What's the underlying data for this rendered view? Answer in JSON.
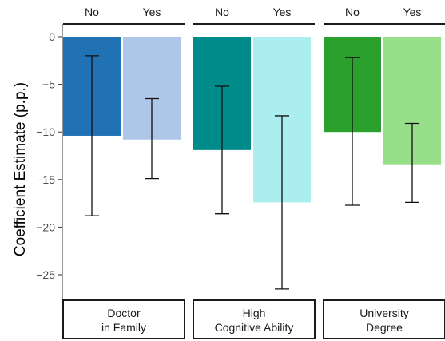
{
  "chart_data": {
    "type": "bar",
    "ylabel": "Coefficient Estimate (p.p.)",
    "xlabel": "",
    "ylim": [
      -27.3,
      0.2
    ],
    "y_ticks": [
      0,
      -5,
      -10,
      -15,
      -20,
      -25
    ],
    "y_tick_labels": [
      "0",
      "−5",
      "−10",
      "−15",
      "−20",
      "−25"
    ],
    "grid": false,
    "categories": [
      "No",
      "Yes"
    ],
    "panels": [
      {
        "title_lines": [
          "Doctor",
          "in Family"
        ],
        "bars": [
          {
            "category": "No",
            "value": -10.4,
            "ci_low": -18.8,
            "ci_high": -2.0,
            "color": "#2171b5"
          },
          {
            "category": "Yes",
            "value": -10.8,
            "ci_low": -14.9,
            "ci_high": -6.5,
            "color": "#aec7e8"
          }
        ]
      },
      {
        "title_lines": [
          "High",
          "Cognitive Ability"
        ],
        "bars": [
          {
            "category": "No",
            "value": -11.9,
            "ci_low": -18.6,
            "ci_high": -5.2,
            "color": "#008b8b"
          },
          {
            "category": "Yes",
            "value": -17.4,
            "ci_low": -26.5,
            "ci_high": -8.3,
            "color": "#aaeef0"
          }
        ]
      },
      {
        "title_lines": [
          "University",
          "Degree"
        ],
        "bars": [
          {
            "category": "No",
            "value": -10.0,
            "ci_low": -17.7,
            "ci_high": -2.2,
            "color": "#2ca02c"
          },
          {
            "category": "Yes",
            "value": -13.4,
            "ci_low": -17.4,
            "ci_high": -9.1,
            "color": "#98df8a"
          }
        ]
      }
    ]
  }
}
